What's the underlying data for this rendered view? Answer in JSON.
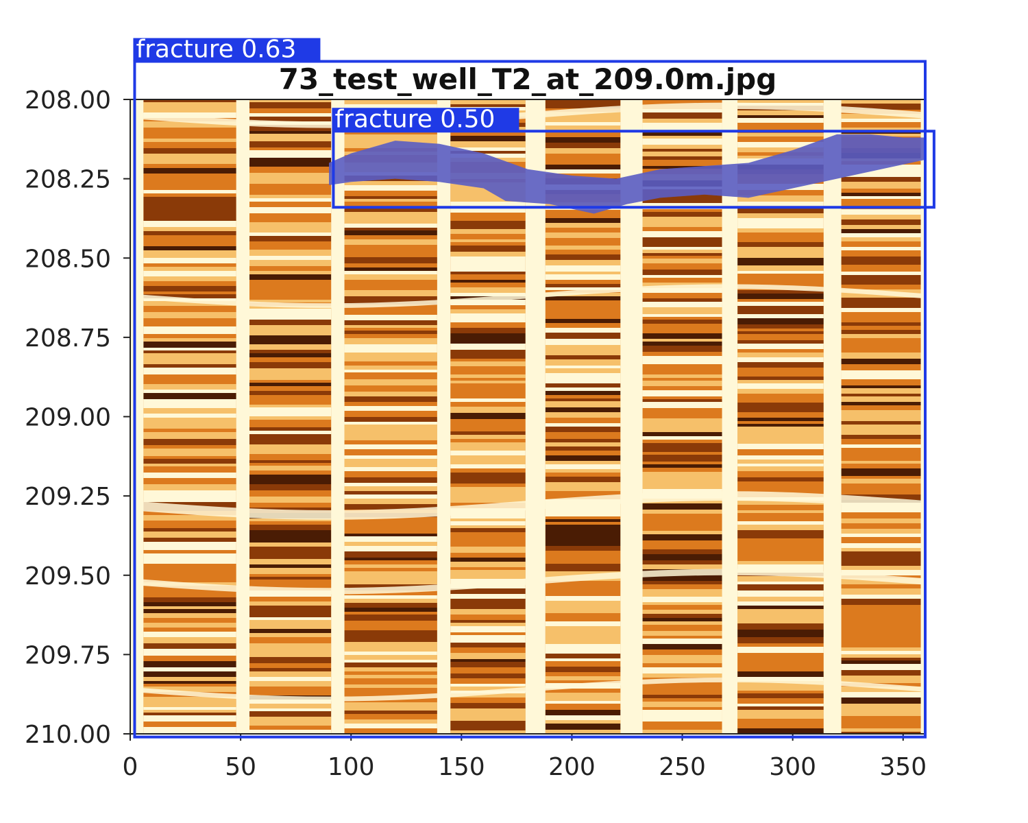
{
  "chart_data": {
    "type": "heatmap",
    "title": "73_test_well_T2_at_209.0m.jpg",
    "xlabel": "",
    "ylabel": "",
    "xlim": [
      0,
      360
    ],
    "ylim": [
      208.0,
      210.0
    ],
    "y_inverted": true,
    "x_ticks": [
      0,
      50,
      100,
      150,
      200,
      250,
      300,
      350
    ],
    "x_tick_labels": [
      "0",
      "50",
      "100",
      "150",
      "200",
      "250",
      "300",
      "350"
    ],
    "y_ticks": [
      208.0,
      208.25,
      208.5,
      208.75,
      209.0,
      209.25,
      209.5,
      209.75,
      210.0
    ],
    "y_tick_labels": [
      "208.00",
      "208.25",
      "208.50",
      "208.75",
      "209.00",
      "209.25",
      "209.50",
      "209.75",
      "210.00"
    ],
    "colormap": [
      "#fff8d8",
      "#f6c06a",
      "#dc7a1e",
      "#8a3a08",
      "#4a1c04"
    ],
    "pad_columns": [
      {
        "x0": 0,
        "x1": 6
      },
      {
        "x0": 48,
        "x1": 54
      },
      {
        "x0": 91,
        "x1": 97
      },
      {
        "x0": 139,
        "x1": 145
      },
      {
        "x0": 179,
        "x1": 188
      },
      {
        "x0": 222,
        "x1": 232
      },
      {
        "x0": 268,
        "x1": 275
      },
      {
        "x0": 314,
        "x1": 322
      },
      {
        "x0": 358,
        "x1": 360
      }
    ],
    "fracture_mask": {
      "color": "#6f7de8",
      "top": [
        [
          90,
          208.2
        ],
        [
          100,
          208.17
        ],
        [
          110,
          208.15
        ],
        [
          120,
          208.13
        ],
        [
          140,
          208.14
        ],
        [
          160,
          208.17
        ],
        [
          180,
          208.22
        ],
        [
          200,
          208.24
        ],
        [
          220,
          208.25
        ],
        [
          240,
          208.22
        ],
        [
          260,
          208.21
        ],
        [
          280,
          208.2
        ],
        [
          300,
          208.16
        ],
        [
          320,
          208.11
        ],
        [
          335,
          208.11
        ],
        [
          350,
          208.12
        ],
        [
          360,
          208.12
        ]
      ],
      "bottom": [
        [
          90,
          208.27
        ],
        [
          100,
          208.26
        ],
        [
          120,
          208.25
        ],
        [
          140,
          208.26
        ],
        [
          160,
          208.28
        ],
        [
          170,
          208.32
        ],
        [
          190,
          208.33
        ],
        [
          210,
          208.36
        ],
        [
          225,
          208.33
        ],
        [
          240,
          208.31
        ],
        [
          260,
          208.3
        ],
        [
          280,
          208.31
        ],
        [
          300,
          208.28
        ],
        [
          320,
          208.25
        ],
        [
          340,
          208.22
        ],
        [
          360,
          208.19
        ]
      ]
    },
    "detections": [
      {
        "label": "fracture 0.63",
        "class": "fracture",
        "score": 0.63,
        "x0": 2,
        "x1": 360,
        "y0": 207.88,
        "y1": 210.01
      },
      {
        "label": "fracture 0.50",
        "class": "fracture",
        "score": 0.5,
        "x0": 92,
        "x1": 364,
        "y0": 208.1,
        "y1": 208.34
      }
    ],
    "box_color": "#1f3ae6"
  }
}
